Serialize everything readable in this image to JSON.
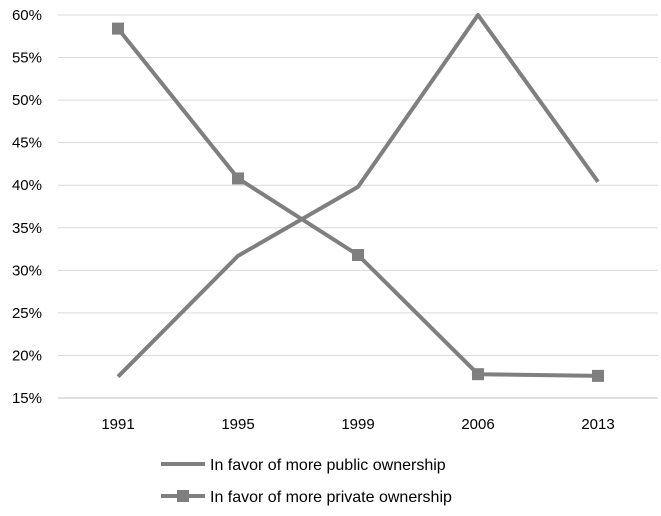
{
  "chart_data": {
    "type": "line",
    "categories": [
      "1991",
      "1995",
      "1999",
      "2006",
      "2013"
    ],
    "y_tick_labels": [
      "15%",
      "20%",
      "25%",
      "30%",
      "35%",
      "40%",
      "45%",
      "50%",
      "55%",
      "60%"
    ],
    "ylim": [
      15,
      60
    ],
    "grid": true,
    "legend_position": "bottom",
    "series": [
      {
        "name": "In favor of more public ownership",
        "values": [
          17.5,
          31.7,
          39.8,
          60,
          40.4
        ],
        "marker": "none",
        "color": "#7f7f7f"
      },
      {
        "name": "In favor of more private ownership",
        "values": [
          58.4,
          40.8,
          31.8,
          17.8,
          17.6
        ],
        "marker": "square",
        "color": "#7f7f7f"
      }
    ]
  }
}
